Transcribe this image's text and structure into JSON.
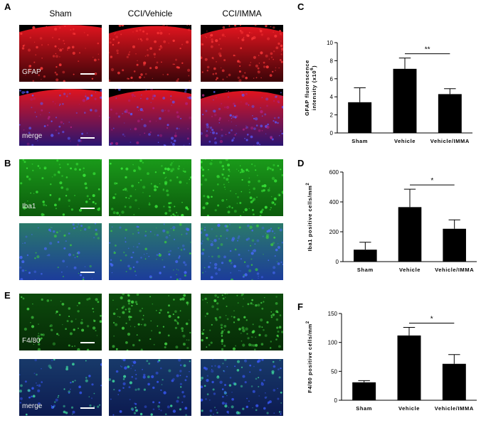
{
  "panel_labels": {
    "A": "A",
    "B": "B",
    "C": "C",
    "D": "D",
    "E": "E",
    "F": "F"
  },
  "columns": [
    "Sham",
    "CCI/Vehicle",
    "CCI/IMMA"
  ],
  "rows": [
    {
      "label": "GFAP",
      "stain": "red"
    },
    {
      "label": "merge",
      "stain": "red-blue"
    },
    {
      "label": "Iba1",
      "stain": "green"
    },
    {
      "label": "",
      "stain": "green-blue"
    },
    {
      "label": "F4/80",
      "stain": "green-dark"
    },
    {
      "label": "merge",
      "stain": "green-blue-dark"
    }
  ],
  "colors": {
    "red": "#e0141e",
    "green": "#1ec81e",
    "blue": "#3c3cf0",
    "bar": "#000000"
  },
  "chart_data": [
    {
      "type": "bar",
      "panel": "C",
      "categories": [
        "Sham",
        "Vehicle",
        "Vehicle/IMMA"
      ],
      "values": [
        3.4,
        7.1,
        4.3
      ],
      "errors": [
        1.6,
        1.2,
        0.6
      ],
      "ylabel_line1": "GFAP fluorescence",
      "ylabel_line2": "intensity (x10",
      "ylabel_sup": "6",
      "ylabel_end": ")",
      "ylim": [
        0,
        10
      ],
      "yticks": [
        0,
        2,
        4,
        6,
        8,
        10
      ],
      "significance": {
        "from": 1,
        "to": 2,
        "label": "**"
      }
    },
    {
      "type": "bar",
      "panel": "D",
      "categories": [
        "Sham",
        "Vehicle",
        "Vehicle/IMMA"
      ],
      "values": [
        80,
        365,
        220
      ],
      "errors": [
        50,
        120,
        60
      ],
      "ylabel_line1": "Iba1 positive cells/mm",
      "ylabel_sup": "2",
      "ylim": [
        0,
        600
      ],
      "yticks": [
        0,
        200,
        400,
        600
      ],
      "significance": {
        "from": 1,
        "to": 2,
        "label": "*"
      }
    },
    {
      "type": "bar",
      "panel": "F",
      "categories": [
        "Sham",
        "Vehicle",
        "Vehicle/IMMA"
      ],
      "values": [
        31,
        112,
        63
      ],
      "errors": [
        3,
        14,
        16
      ],
      "ylabel_line1": "F4/80 positive cells/mm",
      "ylabel_sup": "2",
      "ylim": [
        0,
        150
      ],
      "yticks": [
        0,
        50,
        100,
        150
      ],
      "significance": {
        "from": 1,
        "to": 2,
        "label": "*"
      }
    }
  ]
}
